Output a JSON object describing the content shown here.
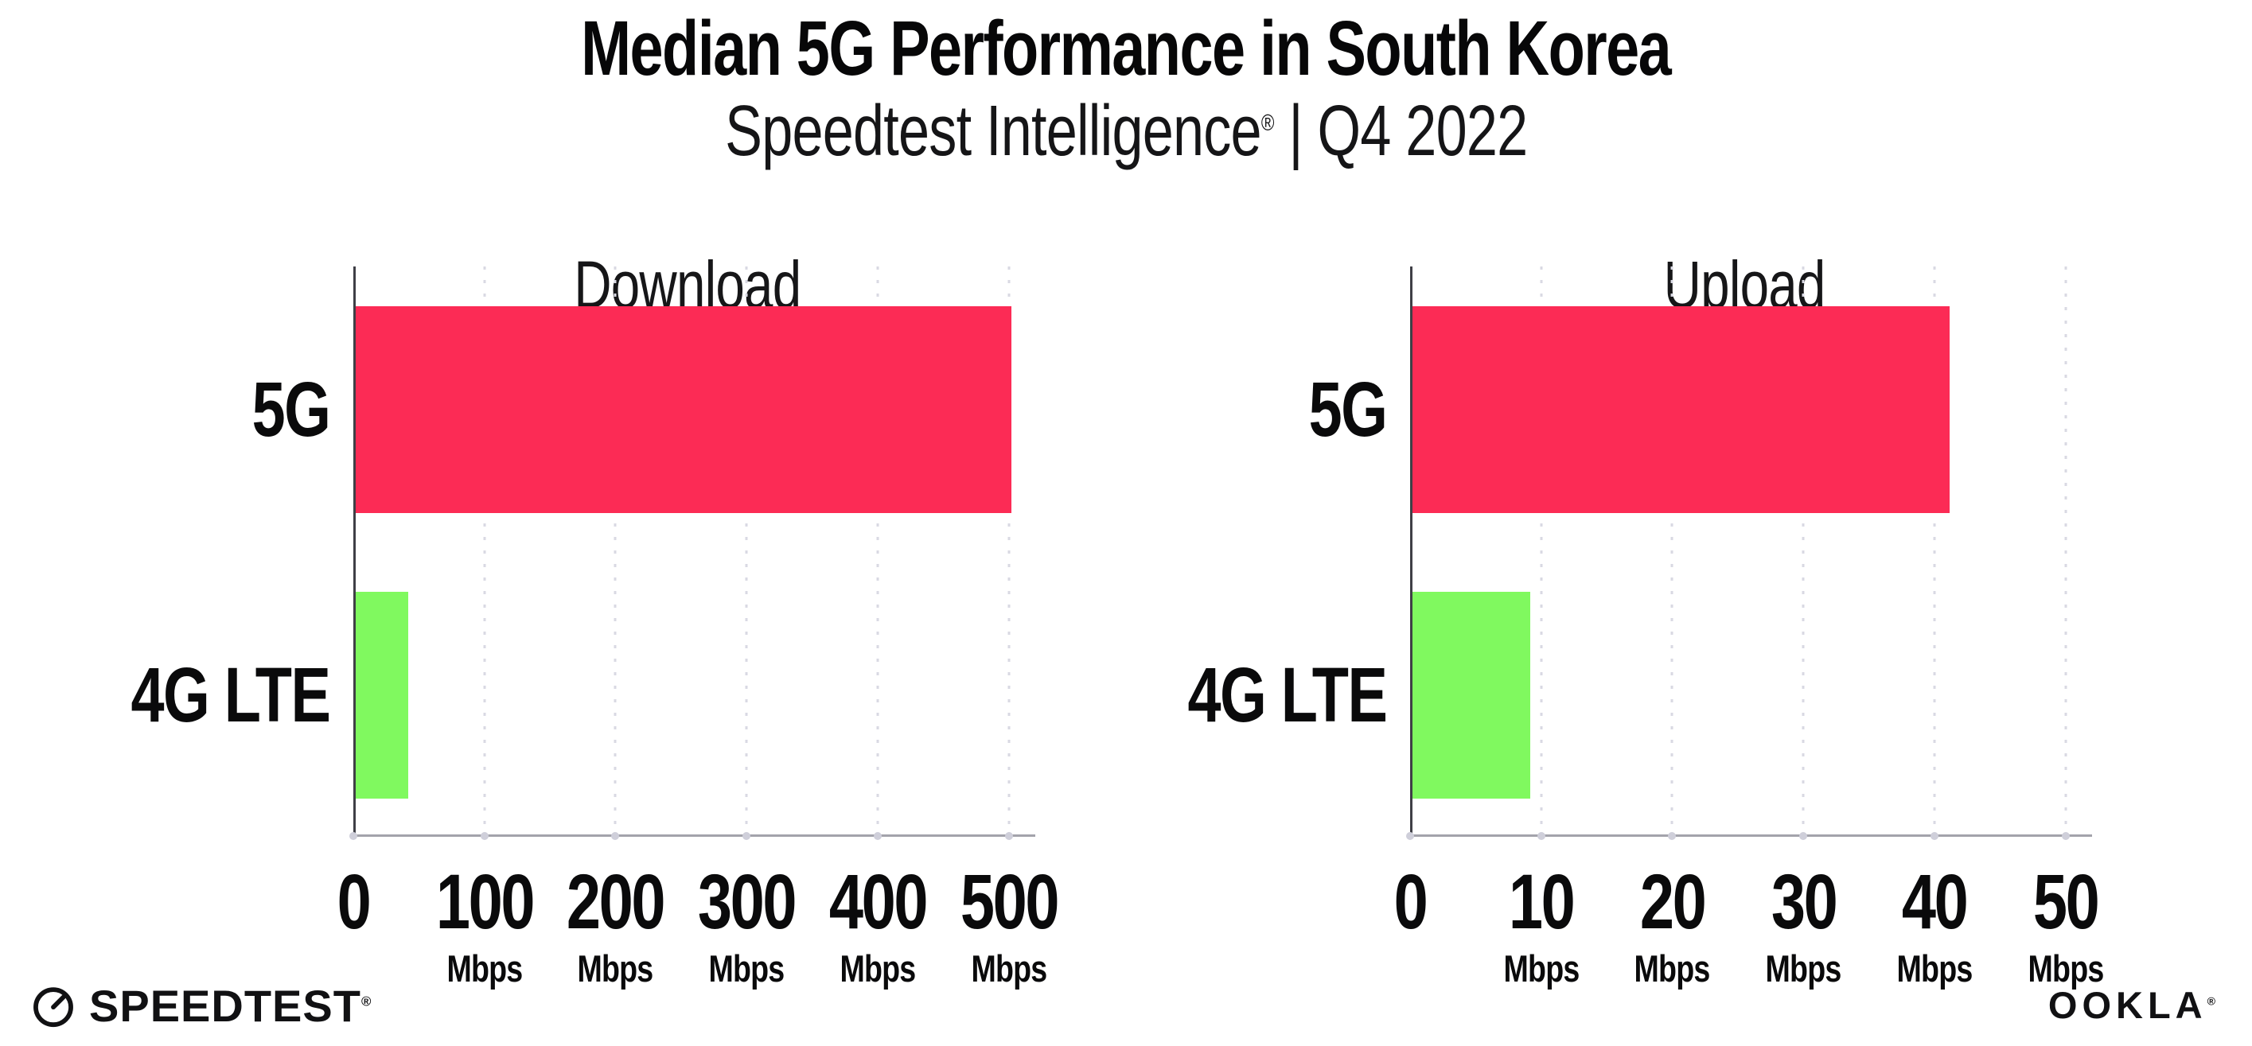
{
  "header": {
    "title": "Median 5G Performance in South Korea",
    "subtitle_brand": "Speedtest Intelligence",
    "subtitle_registered": "®",
    "subtitle_period": " | Q4 2022"
  },
  "footer": {
    "speedtest_wordmark": "SPEEDTEST",
    "speedtest_registered": "®",
    "ookla_wordmark": "OOKLA",
    "ookla_registered": "®"
  },
  "colors": {
    "background": "#ffffff",
    "bar_5g_pink": "#FC2B55",
    "bar_4g_green": "#80F95F",
    "axis_baseline": "#a3a3ab",
    "axis_spine": "#3f3f46",
    "gridline_dot": "#d9d9e3",
    "text": "#0a0a0b"
  },
  "chart_data": [
    {
      "type": "bar",
      "orientation": "horizontal",
      "title": "Download",
      "categories": [
        "5G",
        "4G LTE"
      ],
      "values": [
        500,
        40
      ],
      "value_unit": "Mbps",
      "series_colors": [
        "#FC2B55",
        "#80F95F"
      ],
      "xlim": [
        0,
        500
      ],
      "xticks": [
        0,
        100,
        200,
        300,
        400,
        500
      ],
      "xtick_unit_label": "Mbps",
      "grid": "dotted-vertical",
      "legend": "none"
    },
    {
      "type": "bar",
      "orientation": "horizontal",
      "title": "Upload",
      "categories": [
        "5G",
        "4G LTE"
      ],
      "values": [
        41,
        9
      ],
      "value_unit": "Mbps",
      "series_colors": [
        "#FC2B55",
        "#80F95F"
      ],
      "xlim": [
        0,
        50
      ],
      "xticks": [
        0,
        10,
        20,
        30,
        40,
        50
      ],
      "xtick_unit_label": "Mbps",
      "grid": "dotted-vertical",
      "legend": "none"
    }
  ]
}
